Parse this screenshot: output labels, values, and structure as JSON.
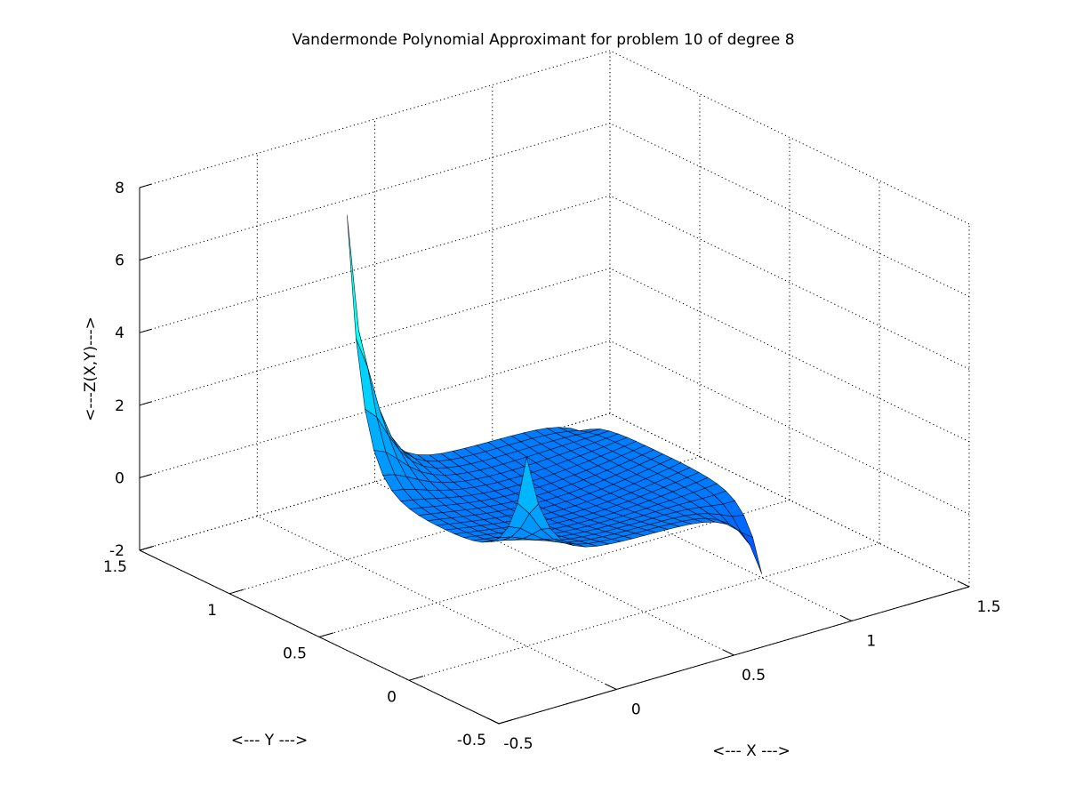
{
  "chart_data": {
    "type": "surface",
    "title": "Vandermonde Polynomial Approximant for problem 10 of degree 8",
    "xlabel": "<--- X --->",
    "ylabel": "<--- Y --->",
    "zlabel": "<---Z(X,Y)--->",
    "xlim": [
      -0.5,
      1.5
    ],
    "ylim": [
      -0.5,
      1.5
    ],
    "zlim": [
      -2,
      8
    ],
    "xticks": [
      -0.5,
      0,
      0.5,
      1,
      1.5
    ],
    "yticks": [
      -0.5,
      0,
      0.5,
      1,
      1.5
    ],
    "zticks": [
      -2,
      0,
      2,
      4,
      6,
      8
    ],
    "xtick_labels": [
      "-0.5",
      "0",
      "0.5",
      "1",
      "1.5"
    ],
    "ytick_labels": [
      "-0.5",
      "0",
      "0.5",
      "1",
      "1.5"
    ],
    "ztick_labels": [
      "-2",
      "0",
      "2",
      "4",
      "6",
      "8"
    ],
    "grid": true,
    "colormap": "jet",
    "surface_domain": {
      "x": [
        0,
        1
      ],
      "y": [
        0,
        1
      ],
      "grid_size": 21
    },
    "surface_features": [
      {
        "corner_x": 0,
        "corner_y": 1,
        "z": 7.5
      },
      {
        "corner_x": 0,
        "corner_y": 0,
        "z": 3.2
      },
      {
        "corner_x": 1,
        "corner_y": 1,
        "z": -0.4
      },
      {
        "corner_x": 1,
        "corner_y": 0,
        "z": -1.9
      }
    ],
    "surface_base_level": 0.1,
    "surface_bowl_depth": -0.35
  }
}
